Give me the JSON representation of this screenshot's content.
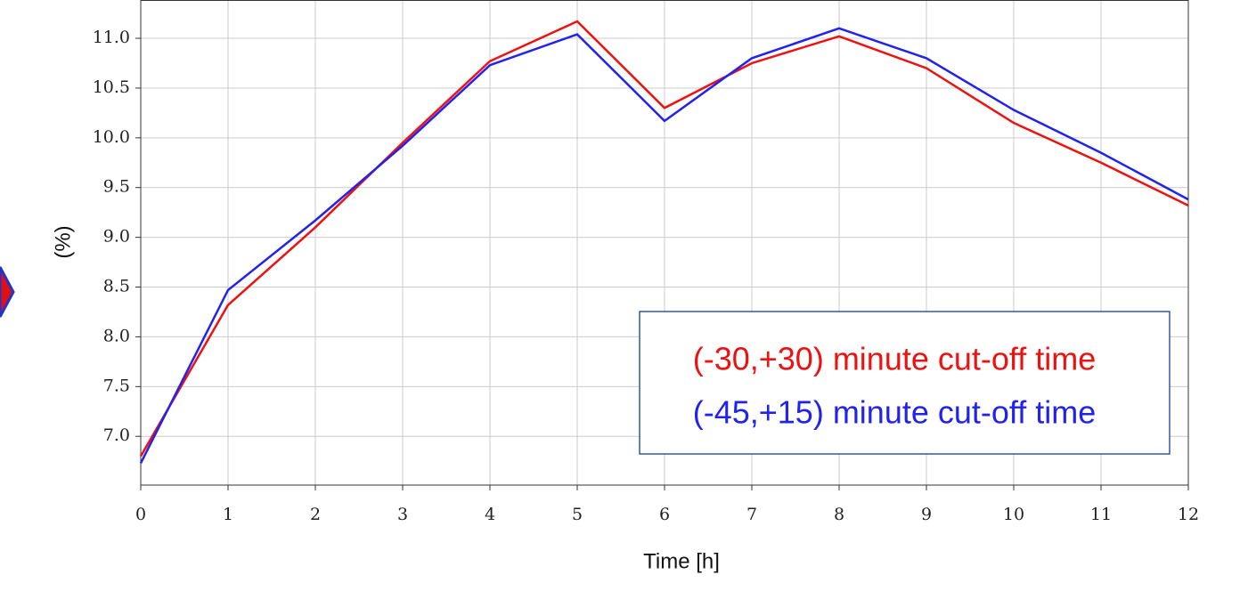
{
  "chart_data": {
    "type": "line",
    "x_label": "Time [h]",
    "y_label": "(%)",
    "x": [
      0,
      1,
      2,
      3,
      4,
      5,
      6,
      7,
      8,
      9,
      10,
      11,
      12
    ],
    "series": [
      {
        "name": "(-30,+30) minute cut-off time",
        "color": "#ee1111",
        "values": [
          6.8,
          8.32,
          9.1,
          9.95,
          10.77,
          11.17,
          10.3,
          10.75,
          11.02,
          10.7,
          10.15,
          9.75,
          9.32
        ]
      },
      {
        "name": "(-45,+15) minute cut-off time",
        "color": "#2222ee",
        "values": [
          6.73,
          8.47,
          9.17,
          9.92,
          10.73,
          11.04,
          10.17,
          10.8,
          11.1,
          10.8,
          10.28,
          9.85,
          9.38
        ]
      }
    ],
    "xlim": [
      0,
      12
    ],
    "xticks": [
      0,
      1,
      2,
      3,
      4,
      5,
      6,
      7,
      8,
      9,
      10,
      11,
      12
    ],
    "ylim": [
      6.51,
      11.385
    ],
    "yticks": [
      {
        "value": 7.0,
        "label": "7.0"
      },
      {
        "value": 7.5,
        "label": "7.5"
      },
      {
        "value": 8.0,
        "label": "8.0"
      },
      {
        "value": 8.5,
        "label": "8.5"
      },
      {
        "value": 9.0,
        "label": "9.0"
      },
      {
        "value": 9.5,
        "label": "9.5"
      },
      {
        "value": 10.0,
        "label": "10.0"
      },
      {
        "value": 10.5,
        "label": "10.5"
      },
      {
        "value": 11.0,
        "label": "11.0"
      }
    ],
    "grid": true,
    "legend": "lower right"
  }
}
